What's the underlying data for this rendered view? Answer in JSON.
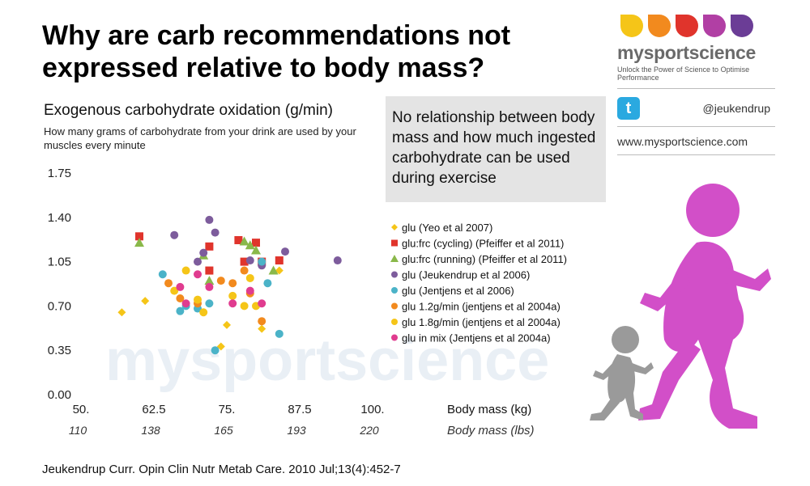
{
  "title": "Why are carb recommendations not expressed relative to body mass?",
  "y_axis_title": "Exogenous carbohydrate oxidation (g/min)",
  "y_axis_subtitle": "How many grams of carbohydrate from your drink are used by your muscles every minute",
  "callout": "No relationship between body mass and how much ingested carbohydrate can be used during exercise",
  "brand": {
    "name": "mysportscience",
    "tagline": "Unlock the Power of Science to Optimise Performance",
    "twitter_handle": "@jeukendrup",
    "website": "www.mysportscience.com",
    "twitter_icon": "twitter-icon",
    "drop_colors": [
      "#f5c518",
      "#f28a1e",
      "#e0342c",
      "#b13fa4",
      "#6b3d96"
    ]
  },
  "watermark": "mysportscience",
  "citation": "Jeukendrup Curr. Opin Clin Nutr Metab Care. 2010 Jul;13(4):452-7",
  "chart_data": {
    "type": "scatter",
    "title": "Exogenous carbohydrate oxidation (g/min)",
    "xlabel": "Body mass (kg)",
    "xlabel_secondary": "Body mass (lbs)",
    "ylabel": "Exogenous carbohydrate oxidation (g/min)",
    "xlim": [
      50,
      100
    ],
    "ylim": [
      0,
      1.75
    ],
    "x_ticks": [
      "50.",
      "62.5",
      "75.",
      "87.5",
      "100."
    ],
    "x_tick_values": [
      50,
      62.5,
      75,
      87.5,
      100
    ],
    "y_ticks": [
      "1.75",
      "1.40",
      "1.05",
      "0.70",
      "0.35",
      "0.00"
    ],
    "y_tick_values": [
      1.75,
      1.4,
      1.05,
      0.7,
      0.35,
      0
    ],
    "lbs_ticks": [
      "110",
      "138",
      "165",
      "193",
      "220"
    ],
    "grid": false,
    "legend_position": "right",
    "series": [
      {
        "name": "glu (Yeo et al 2007)",
        "color": "#f5c518",
        "marker": "diamond",
        "points": [
          [
            57,
            0.65
          ],
          [
            61,
            0.74
          ],
          [
            74,
            0.38
          ],
          [
            75,
            0.55
          ],
          [
            81,
            0.52
          ],
          [
            84,
            0.98
          ]
        ]
      },
      {
        "name": "glu:frc (cycling) (Pfeiffer et al 2011)",
        "color": "#e0342c",
        "marker": "square",
        "points": [
          [
            60,
            1.25
          ],
          [
            72,
            1.17
          ],
          [
            72,
            0.98
          ],
          [
            77,
            1.22
          ],
          [
            78,
            1.05
          ],
          [
            80,
            1.2
          ],
          [
            81,
            1.05
          ],
          [
            84,
            1.06
          ]
        ]
      },
      {
        "name": "glu:frc (running) (Pfeiffer et al 2011)",
        "color": "#8ab84a",
        "marker": "triangle",
        "points": [
          [
            60,
            1.2
          ],
          [
            71,
            1.1
          ],
          [
            72,
            0.9
          ],
          [
            78,
            1.21
          ],
          [
            79,
            1.18
          ],
          [
            80,
            1.14
          ],
          [
            83,
            0.98
          ]
        ]
      },
      {
        "name": "glu (Jeukendrup et al 2006)",
        "color": "#7d5c9c",
        "marker": "circle",
        "points": [
          [
            66,
            1.26
          ],
          [
            70,
            1.05
          ],
          [
            71,
            1.12
          ],
          [
            72,
            1.38
          ],
          [
            73,
            1.28
          ],
          [
            79,
            1.06
          ],
          [
            81,
            1.02
          ],
          [
            85,
            1.13
          ],
          [
            94,
            1.06
          ]
        ]
      },
      {
        "name": "glu (Jentjens et al 2006)",
        "color": "#4bb3c8",
        "marker": "circle",
        "points": [
          [
            64,
            0.95
          ],
          [
            67,
            0.66
          ],
          [
            68,
            0.7
          ],
          [
            70,
            0.68
          ],
          [
            72,
            0.72
          ],
          [
            73,
            0.35
          ],
          [
            81,
            1.05
          ],
          [
            82,
            0.88
          ],
          [
            84,
            0.48
          ]
        ]
      },
      {
        "name": "glu 1.2g/min (jentjens et al 2004a)",
        "color": "#f28a1e",
        "marker": "circle",
        "points": [
          [
            65,
            0.88
          ],
          [
            67,
            0.76
          ],
          [
            70,
            0.72
          ],
          [
            74,
            0.9
          ],
          [
            76,
            0.88
          ],
          [
            78,
            0.98
          ],
          [
            79,
            0.8
          ],
          [
            81,
            0.58
          ]
        ]
      },
      {
        "name": "glu 1.8g/min (jentjens et al 2004a)",
        "color": "#f5c518",
        "marker": "circle",
        "points": [
          [
            66,
            0.82
          ],
          [
            68,
            0.98
          ],
          [
            70,
            0.75
          ],
          [
            71,
            0.65
          ],
          [
            76,
            0.78
          ],
          [
            78,
            0.7
          ],
          [
            79,
            0.92
          ],
          [
            80,
            0.7
          ]
        ]
      },
      {
        "name": "glu in mix (Jentjens et al 2004a)",
        "color": "#e03c8f",
        "marker": "circle",
        "points": [
          [
            67,
            0.85
          ],
          [
            68,
            0.72
          ],
          [
            70,
            0.95
          ],
          [
            72,
            0.85
          ],
          [
            76,
            0.72
          ],
          [
            79,
            0.82
          ],
          [
            81,
            0.72
          ]
        ]
      }
    ]
  }
}
